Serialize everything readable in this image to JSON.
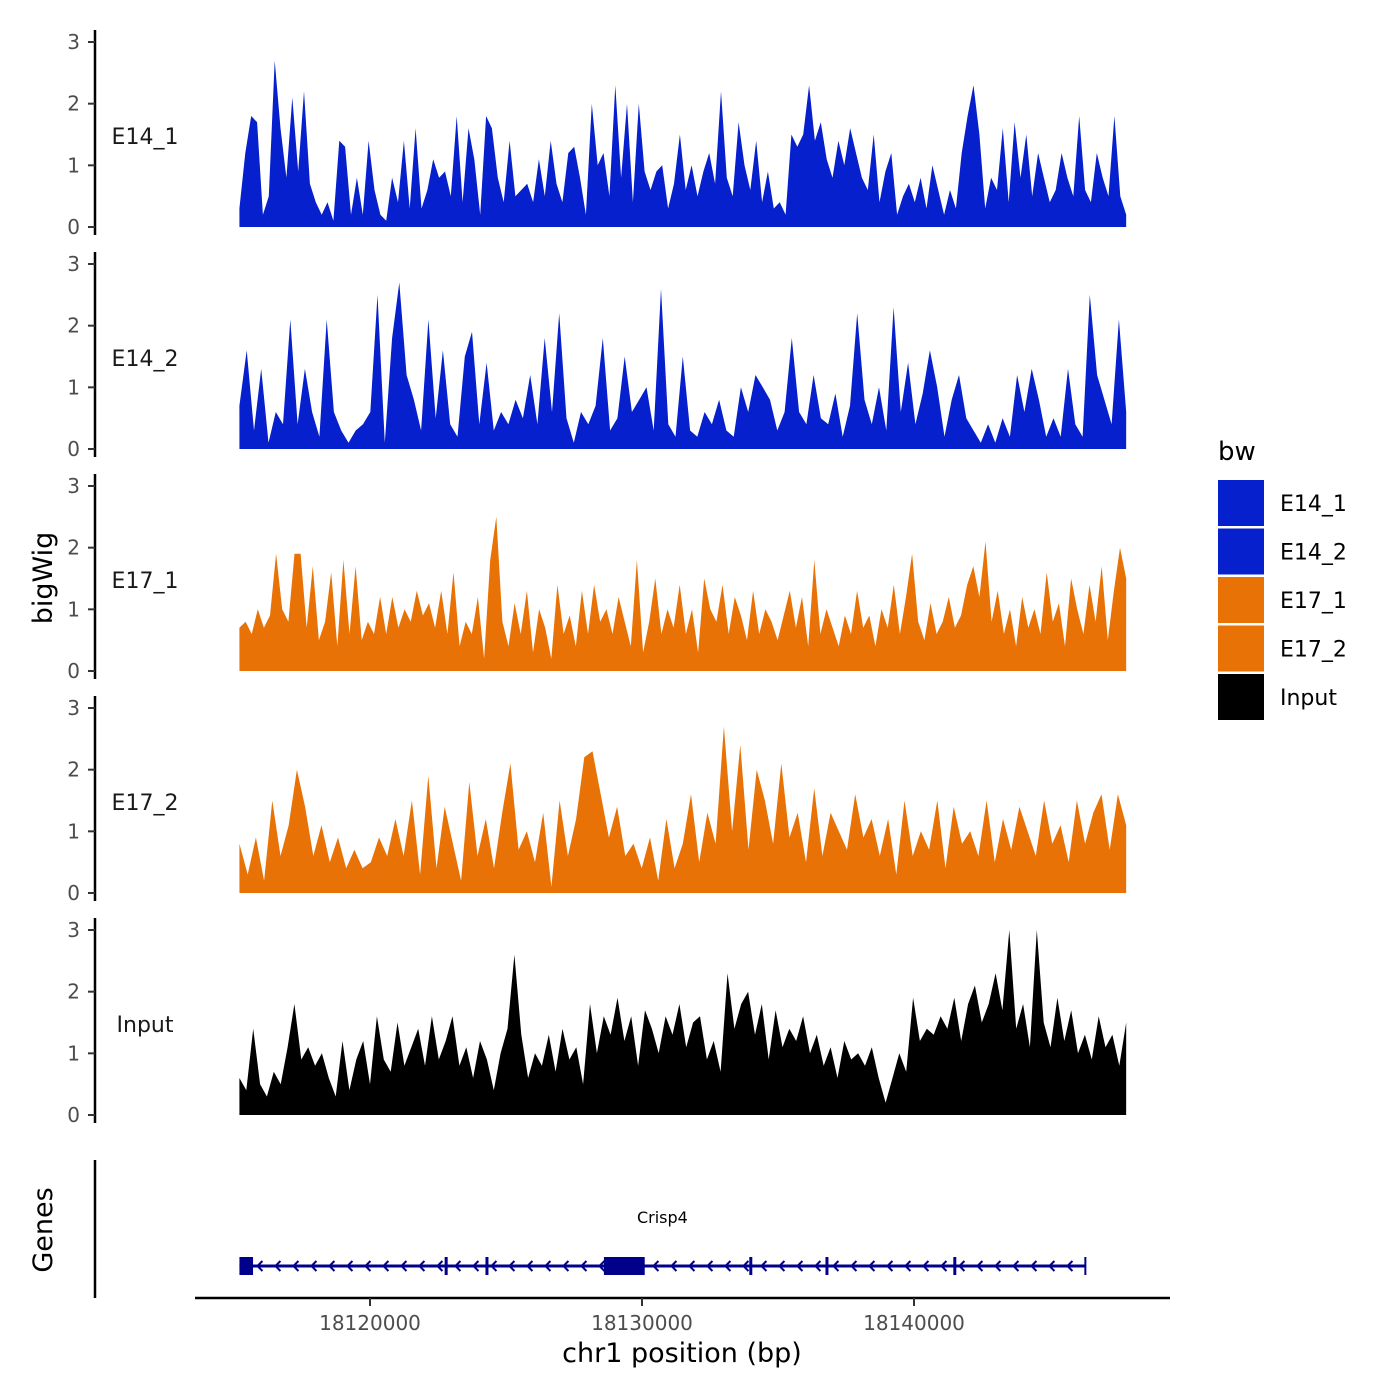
{
  "chart_data": {
    "type": "area",
    "title": "",
    "ylabel": "bigWig",
    "xlabel": "chr1 position (bp)",
    "xlim": [
      18114000,
      18149000
    ],
    "ylim": [
      0,
      3.1
    ],
    "yticks": [
      0,
      1,
      2,
      3
    ],
    "xticks": [
      18120000,
      18130000,
      18140000
    ],
    "x_range": [
      18115200,
      18147800
    ],
    "legend": {
      "title": "bw",
      "position": "right",
      "entries": [
        {
          "label": "E14_1",
          "color": "#0520CC"
        },
        {
          "label": "E14_2",
          "color": "#0520CC"
        },
        {
          "label": "E17_1",
          "color": "#E87205"
        },
        {
          "label": "E17_2",
          "color": "#E87205"
        },
        {
          "label": "Input",
          "color": "#000000"
        }
      ]
    },
    "series": [
      {
        "name": "E14_1",
        "color": "#0520CC",
        "values": [
          0.3,
          1.2,
          1.8,
          1.7,
          0.2,
          0.5,
          2.7,
          1.6,
          0.8,
          2.1,
          0.9,
          2.2,
          0.7,
          0.4,
          0.2,
          0.4,
          0.1,
          1.4,
          1.3,
          0.2,
          0.8,
          0.2,
          1.4,
          0.6,
          0.2,
          0.1,
          0.8,
          0.4,
          1.4,
          0.3,
          1.6,
          0.3,
          0.6,
          1.1,
          0.8,
          0.9,
          0.5,
          1.8,
          0.4,
          1.6,
          1.1,
          0.2,
          1.8,
          1.6,
          0.8,
          0.4,
          1.4,
          0.5,
          0.6,
          0.7,
          0.4,
          1.1,
          0.5,
          1.4,
          0.7,
          0.4,
          1.2,
          1.3,
          0.8,
          0.2,
          2.0,
          1.0,
          1.2,
          0.5,
          2.3,
          0.8,
          2.0,
          0.4,
          2.0,
          0.9,
          0.6,
          0.9,
          1.0,
          0.3,
          0.7,
          1.5,
          0.6,
          1.0,
          0.5,
          0.9,
          1.2,
          0.7,
          2.2,
          0.8,
          0.5,
          1.7,
          1.0,
          0.6,
          1.4,
          0.4,
          0.9,
          0.3,
          0.4,
          0.2,
          1.5,
          1.3,
          1.5,
          2.3,
          1.4,
          1.7,
          1.1,
          0.8,
          1.4,
          1.0,
          1.6,
          1.2,
          0.8,
          0.6,
          1.5,
          0.4,
          0.9,
          1.2,
          0.2,
          0.5,
          0.7,
          0.4,
          0.8,
          0.3,
          1.0,
          0.6,
          0.2,
          0.6,
          0.3,
          1.2,
          1.8,
          2.3,
          1.5,
          0.3,
          0.8,
          0.6,
          1.6,
          0.4,
          1.7,
          0.8,
          1.5,
          0.5,
          1.2,
          0.8,
          0.4,
          0.6,
          1.2,
          0.8,
          0.5,
          1.8,
          0.6,
          0.4,
          1.2,
          0.8,
          0.5,
          1.8,
          0.5,
          0.2
        ]
      },
      {
        "name": "E14_2",
        "color": "#0520CC",
        "values": [
          0.7,
          1.6,
          0.3,
          1.3,
          0.1,
          0.6,
          0.4,
          2.1,
          0.4,
          1.3,
          0.6,
          0.2,
          2.1,
          0.6,
          0.3,
          0.1,
          0.3,
          0.4,
          0.6,
          2.5,
          0.1,
          1.8,
          2.7,
          1.2,
          0.8,
          0.3,
          2.1,
          0.5,
          1.6,
          0.4,
          0.2,
          1.5,
          1.9,
          0.4,
          1.4,
          0.3,
          0.6,
          0.4,
          0.8,
          0.5,
          1.2,
          0.4,
          1.8,
          0.6,
          2.2,
          0.5,
          0.1,
          0.6,
          0.4,
          0.7,
          1.8,
          0.3,
          0.5,
          1.5,
          0.6,
          0.8,
          1.0,
          0.3,
          2.6,
          0.4,
          0.2,
          1.5,
          0.3,
          0.2,
          0.6,
          0.4,
          0.8,
          0.3,
          0.2,
          1.0,
          0.6,
          1.2,
          1.0,
          0.8,
          0.3,
          0.6,
          1.8,
          0.6,
          0.4,
          1.2,
          0.5,
          0.4,
          0.9,
          0.2,
          0.7,
          2.2,
          0.8,
          0.4,
          1.0,
          0.3,
          2.3,
          0.6,
          1.4,
          0.4,
          0.9,
          1.6,
          1.0,
          0.2,
          0.8,
          1.2,
          0.5,
          0.3,
          0.1,
          0.4,
          0.1,
          0.5,
          0.2,
          1.2,
          0.6,
          1.3,
          0.8,
          0.2,
          0.5,
          0.2,
          1.3,
          0.4,
          0.2,
          2.5,
          1.2,
          0.8,
          0.4,
          2.1,
          0.6
        ]
      },
      {
        "name": "E17_1",
        "color": "#E87205",
        "values": [
          0.7,
          0.8,
          0.6,
          1.0,
          0.7,
          0.9,
          1.9,
          1.0,
          0.8,
          1.9,
          1.9,
          0.7,
          1.7,
          0.5,
          0.8,
          1.6,
          0.4,
          1.8,
          0.6,
          1.7,
          0.5,
          0.8,
          0.6,
          1.2,
          0.6,
          1.2,
          0.7,
          1.0,
          0.8,
          1.3,
          0.9,
          1.1,
          0.7,
          1.3,
          0.6,
          1.6,
          0.4,
          0.8,
          0.6,
          1.2,
          0.2,
          1.8,
          2.5,
          0.8,
          0.4,
          1.1,
          0.6,
          1.3,
          0.3,
          1.0,
          0.7,
          0.2,
          1.4,
          0.6,
          0.9,
          0.4,
          1.3,
          0.6,
          1.4,
          0.8,
          1.0,
          0.6,
          1.2,
          0.8,
          0.4,
          1.8,
          0.3,
          0.8,
          1.5,
          0.6,
          1.0,
          0.7,
          1.4,
          0.6,
          1.0,
          0.3,
          1.5,
          1.0,
          0.8,
          1.4,
          0.6,
          1.2,
          0.9,
          0.5,
          1.3,
          0.6,
          1.0,
          0.8,
          0.5,
          0.9,
          1.3,
          0.7,
          1.2,
          0.4,
          1.8,
          0.6,
          1.0,
          0.7,
          0.4,
          0.9,
          0.6,
          1.3,
          0.7,
          0.9,
          0.4,
          1.0,
          0.7,
          1.4,
          0.6,
          1.2,
          1.9,
          0.8,
          0.5,
          1.1,
          0.6,
          0.8,
          1.2,
          0.7,
          0.9,
          1.4,
          1.7,
          1.2,
          2.1,
          0.8,
          1.3,
          0.6,
          1.0,
          0.4,
          1.2,
          0.7,
          1.0,
          0.6,
          1.6,
          0.8,
          1.1,
          0.4,
          1.5,
          1.0,
          0.6,
          1.4,
          0.8,
          1.7,
          0.5,
          1.3,
          2.0,
          1.5
        ]
      },
      {
        "name": "E17_2",
        "color": "#E87205",
        "values": [
          0.8,
          0.3,
          0.9,
          0.2,
          1.5,
          0.6,
          1.1,
          2.0,
          1.4,
          0.6,
          1.1,
          0.5,
          0.9,
          0.4,
          0.7,
          0.4,
          0.5,
          0.9,
          0.6,
          1.2,
          0.6,
          1.5,
          0.3,
          1.9,
          0.4,
          1.4,
          0.8,
          0.2,
          1.8,
          0.6,
          1.2,
          0.4,
          1.3,
          2.1,
          0.7,
          1.0,
          0.5,
          1.3,
          0.1,
          1.5,
          0.6,
          1.2,
          2.2,
          2.3,
          1.6,
          0.9,
          1.4,
          0.6,
          0.8,
          0.4,
          0.9,
          0.2,
          1.2,
          0.4,
          0.8,
          1.6,
          0.5,
          1.3,
          0.8,
          2.7,
          1.0,
          2.4,
          0.7,
          2.0,
          1.5,
          0.8,
          2.1,
          0.9,
          1.3,
          0.5,
          1.7,
          0.6,
          1.3,
          1.0,
          0.7,
          1.6,
          0.9,
          1.2,
          0.6,
          1.2,
          0.3,
          1.5,
          0.6,
          1.0,
          0.7,
          1.5,
          0.4,
          1.4,
          0.8,
          1.0,
          0.6,
          1.5,
          0.5,
          1.2,
          0.7,
          1.4,
          1.0,
          0.6,
          1.5,
          0.8,
          1.1,
          0.5,
          1.5,
          0.8,
          1.3,
          1.6,
          0.7,
          1.6,
          1.1
        ]
      },
      {
        "name": "Input",
        "color": "#000000",
        "values": [
          0.6,
          0.4,
          1.4,
          0.5,
          0.3,
          0.7,
          0.5,
          1.1,
          1.8,
          0.9,
          1.1,
          0.8,
          1.0,
          0.6,
          0.3,
          1.2,
          0.4,
          0.9,
          1.2,
          0.5,
          1.6,
          0.9,
          0.7,
          1.5,
          0.8,
          1.1,
          1.4,
          0.8,
          1.6,
          0.9,
          1.2,
          1.6,
          0.8,
          1.1,
          0.6,
          1.2,
          0.9,
          0.4,
          1.0,
          1.4,
          2.6,
          1.3,
          0.6,
          1.0,
          0.8,
          1.3,
          0.7,
          1.4,
          0.9,
          1.1,
          0.5,
          1.8,
          1.0,
          1.6,
          1.3,
          1.9,
          1.2,
          1.6,
          0.8,
          1.7,
          1.4,
          1.0,
          1.6,
          1.3,
          1.8,
          1.1,
          1.5,
          1.6,
          0.9,
          1.2,
          0.7,
          2.3,
          1.4,
          1.8,
          2.0,
          1.3,
          1.8,
          0.9,
          1.7,
          1.1,
          1.4,
          1.2,
          1.6,
          1.0,
          1.3,
          0.8,
          1.1,
          0.6,
          1.2,
          0.9,
          1.0,
          0.8,
          1.1,
          0.6,
          0.2,
          0.6,
          1.0,
          0.7,
          1.9,
          1.2,
          1.4,
          1.3,
          1.6,
          1.4,
          1.9,
          1.2,
          1.8,
          2.1,
          1.5,
          1.8,
          2.3,
          1.7,
          3.0,
          1.4,
          1.8,
          1.1,
          3.0,
          1.5,
          1.1,
          1.9,
          1.2,
          1.7,
          1.0,
          1.3,
          0.9,
          1.6,
          1.1,
          1.3,
          0.8,
          1.5
        ]
      }
    ],
    "gene_track": {
      "label": "Genes",
      "gene_name": "Crisp4",
      "start": 18115200,
      "end": 18146300,
      "strand": "-",
      "exons": [
        [
          18115200,
          18115700
        ],
        [
          18128600,
          18130100
        ]
      ],
      "intron_marks": [
        18122800,
        18124300,
        18134000,
        18136800,
        18141500
      ]
    }
  }
}
